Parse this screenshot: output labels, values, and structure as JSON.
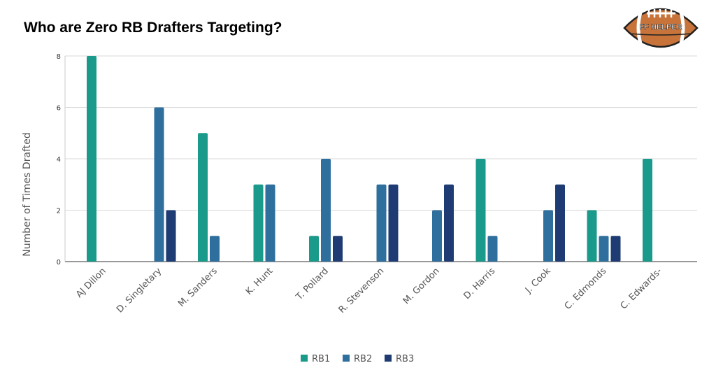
{
  "chart_data": {
    "type": "bar",
    "title": "Who are Zero RB Drafters Targeting?",
    "xlabel": "",
    "ylabel": "Number of Times Drafted",
    "ylim": [
      0,
      8
    ],
    "yticks": [
      0,
      2,
      4,
      6,
      8
    ],
    "grid": true,
    "legend": "bottom",
    "categories": [
      "AJ Dillon",
      "D. Singletary",
      "M. Sanders",
      "K. Hunt",
      "T. Pollard",
      "R. Stevenson",
      "M. Gordon",
      "D. Harris",
      "J. Cook",
      "C. Edmonds",
      "C. Edwards-"
    ],
    "series": [
      {
        "name": "RB1",
        "color": "#1a9a8a",
        "values": [
          8,
          0,
          5,
          3,
          1,
          0,
          0,
          4,
          0,
          2,
          4
        ]
      },
      {
        "name": "RB2",
        "color": "#2e6f9e",
        "values": [
          0,
          6,
          1,
          3,
          4,
          3,
          2,
          1,
          2,
          1,
          0
        ]
      },
      {
        "name": "RB3",
        "color": "#1f3b73",
        "values": [
          0,
          2,
          0,
          0,
          1,
          3,
          3,
          0,
          3,
          1,
          0
        ]
      }
    ]
  },
  "logo": {
    "text": "FF HELPER",
    "icon": "football-icon"
  }
}
